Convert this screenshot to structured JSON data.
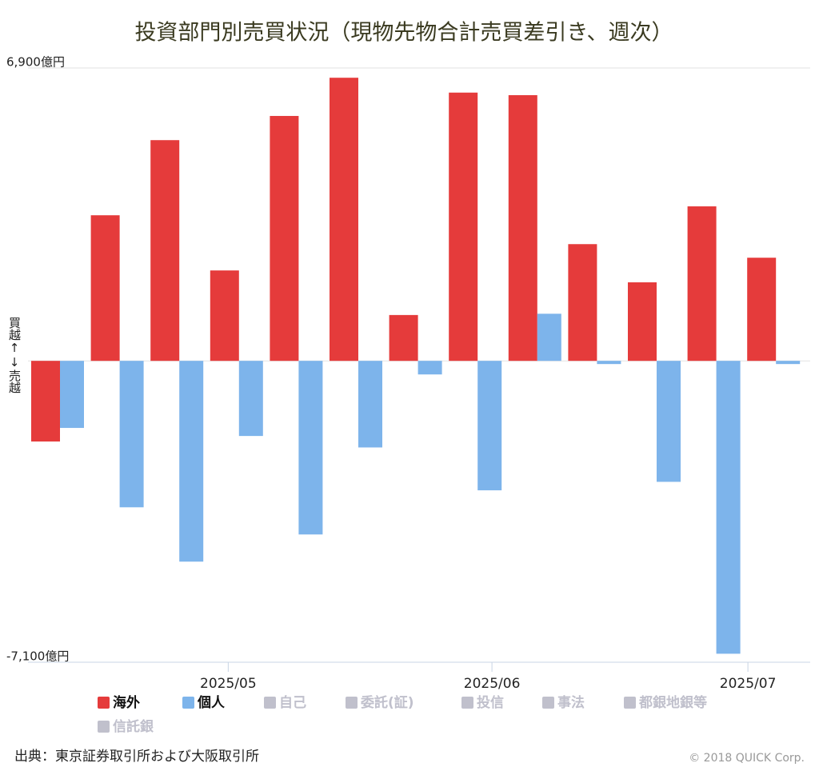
{
  "chart_data": {
    "type": "bar",
    "title": "投資部門別売買状況（現物先物合計売買差引き、週次）",
    "y_label": "買越↑↓売越",
    "categories": [
      null,
      null,
      null,
      null,
      null,
      null,
      null,
      null,
      null,
      null,
      null,
      null,
      null
    ],
    "series": [
      {
        "name": "海外",
        "color": "#e53b3b",
        "values": [
          -1900,
          3430,
          5200,
          2130,
          5770,
          6670,
          1080,
          6320,
          6260,
          2750,
          1850,
          3640,
          2430
        ]
      },
      {
        "name": "個人",
        "color": "#7db4eb",
        "values": [
          -1580,
          -3450,
          -4730,
          -1770,
          -4090,
          -2040,
          -320,
          -3050,
          1110,
          -75,
          -2850,
          -6900,
          -75
        ]
      },
      {
        "name": "自己",
        "color": "#c0c0cc",
        "visible": false
      },
      {
        "name": "委託(証)",
        "color": "#c0c0cc",
        "visible": false
      },
      {
        "name": "投信",
        "color": "#c0c0cc",
        "visible": false
      },
      {
        "name": "事法",
        "color": "#c0c0cc",
        "visible": false
      },
      {
        "name": "都銀地銀等",
        "color": "#c0c0cc",
        "visible": false
      },
      {
        "name": "信託銀",
        "color": "#c0c0cc",
        "visible": false
      }
    ],
    "ylim": [
      -7100,
      6900
    ],
    "yticks": [
      {
        "value": -7100,
        "label": "-7,100億円"
      },
      {
        "value": 6900,
        "label": "6,900億円"
      }
    ],
    "xticks": [
      {
        "value": 2.86,
        "label": "2025/05"
      },
      {
        "value": 7.28,
        "label": "2025/06"
      },
      {
        "value": 11.57,
        "label": "2025/07"
      }
    ],
    "source": "出典：東京証券取引所および大阪取引所",
    "copyright": "© 2018 QUICK Corp."
  }
}
